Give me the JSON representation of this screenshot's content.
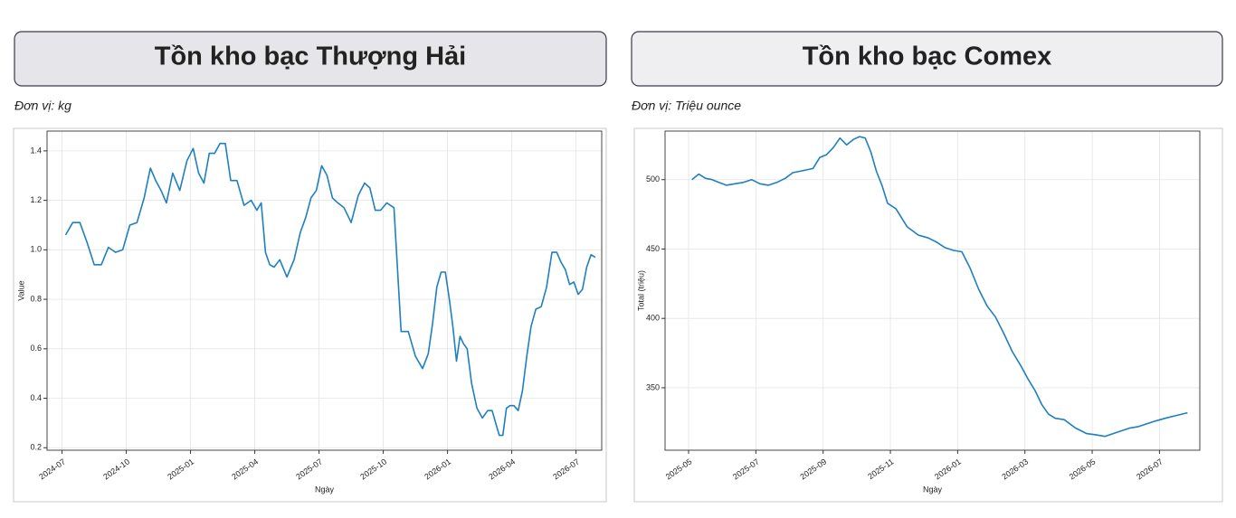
{
  "chart_data": [
    {
      "type": "line",
      "title": "Tồn kho bạc Thượng Hải",
      "subtitle": "Đơn vị: kg",
      "x_label": "Ngày",
      "y_label": "Value",
      "color": "#1f7fbf",
      "grid": true,
      "x": [
        "2024-07",
        "2024-07",
        "2024-07",
        "2024-08",
        "2024-08",
        "2024-08",
        "2024-09",
        "2024-09",
        "2024-09",
        "2024-10",
        "2024-10",
        "2024-10",
        "2024-11",
        "2024-11",
        "2024-11",
        "2024-11",
        "2024-12",
        "2024-12",
        "2024-12",
        "2025-01",
        "2025-01",
        "2025-01",
        "2025-01",
        "2025-02",
        "2025-02",
        "2025-02",
        "2025-02",
        "2025-03",
        "2025-03",
        "2025-03",
        "2025-04",
        "2025-04",
        "2025-04",
        "2025-04",
        "2025-04",
        "2025-05",
        "2025-05",
        "2025-05",
        "2025-06",
        "2025-06",
        "2025-06",
        "2025-06",
        "2025-07",
        "2025-07",
        "2025-07",
        "2025-07",
        "2025-08",
        "2025-08",
        "2025-08",
        "2025-09",
        "2025-09",
        "2025-09",
        "2025-09",
        "2025-10",
        "2025-10",
        "2025-10",
        "2025-11",
        "2025-11",
        "2025-11",
        "2025-12",
        "2025-12",
        "2025-12",
        "2025-12",
        "2025-12",
        "2026-01",
        "2026-01",
        "2026-01",
        "2026-01",
        "2026-01",
        "2026-01",
        "2026-02",
        "2026-02",
        "2026-02",
        "2026-02",
        "2026-03",
        "2026-03",
        "2026-03",
        "2026-03",
        "2026-03",
        "2026-03",
        "2026-04",
        "2026-04",
        "2026-04",
        "2026-04",
        "2026-04",
        "2026-05",
        "2026-05",
        "2026-05",
        "2026-05",
        "2026-06",
        "2026-06",
        "2026-06",
        "2026-06",
        "2026-06",
        "2026-07",
        "2026-07",
        "2026-07",
        "2026-07",
        "2026-07"
      ],
      "values": [
        1.06,
        1.11,
        1.11,
        1.03,
        0.94,
        0.94,
        1.01,
        0.99,
        1.0,
        1.1,
        1.11,
        1.21,
        1.33,
        1.28,
        1.24,
        1.19,
        1.31,
        1.24,
        1.36,
        1.41,
        1.31,
        1.27,
        1.39,
        1.39,
        1.43,
        1.43,
        1.28,
        1.28,
        1.18,
        1.2,
        1.16,
        1.19,
        0.99,
        0.94,
        0.93,
        0.96,
        0.89,
        0.96,
        1.07,
        1.13,
        1.21,
        1.24,
        1.34,
        1.3,
        1.21,
        1.19,
        1.17,
        1.11,
        1.22,
        1.27,
        1.25,
        1.16,
        1.16,
        1.19,
        1.17,
        0.67,
        0.67,
        0.57,
        0.52,
        0.58,
        0.7,
        0.85,
        0.91,
        0.91,
        0.8,
        0.69,
        0.55,
        0.65,
        0.62,
        0.6,
        0.46,
        0.36,
        0.32,
        0.35,
        0.35,
        0.3,
        0.25,
        0.25,
        0.36,
        0.37,
        0.37,
        0.35,
        0.43,
        0.57,
        0.69,
        0.76,
        0.77,
        0.85,
        0.99,
        0.99,
        0.95,
        0.92,
        0.86,
        0.87,
        0.82,
        0.84,
        0.93,
        0.98,
        0.97
      ],
      "xticks": [
        "2024-07",
        "2024-10",
        "2025-01",
        "2025-04",
        "2025-07",
        "2025-10",
        "2026-01",
        "2026-04",
        "2026-07"
      ],
      "ylim": [
        0.19,
        1.48
      ],
      "yticks": [
        0.2,
        0.4,
        0.6,
        0.8,
        {
          "value": 1,
          "label": "1.0"
        },
        1.2,
        1.4
      ]
    },
    {
      "type": "line",
      "title": "Tồn kho bạc Comex",
      "subtitle": "Đơn vị: Triệu ounce",
      "x_label": "Ngày",
      "y_label": "Total (triệu)",
      "color": "#1f7fbf",
      "grid": true,
      "x": [
        "2025-05",
        "2025-05",
        "2025-05",
        "2025-05",
        "2025-05",
        "2025-06",
        "2025-06",
        "2025-06",
        "2025-06",
        "2025-07",
        "2025-07",
        "2025-07",
        "2025-07",
        "2025-08",
        "2025-08",
        "2025-08",
        "2025-08",
        "2025-08",
        "2025-09",
        "2025-09",
        "2025-09",
        "2025-09",
        "2025-09",
        "2025-10",
        "2025-10",
        "2025-10",
        "2025-10",
        "2025-10",
        "2025-10",
        "2025-11",
        "2025-11",
        "2025-11",
        "2025-12",
        "2025-12",
        "2025-12",
        "2025-12",
        "2026-01",
        "2026-01",
        "2026-01",
        "2026-01",
        "2026-02",
        "2026-02",
        "2026-02",
        "2026-02",
        "2026-03",
        "2026-03",
        "2026-03",
        "2026-03",
        "2026-03",
        "2026-04",
        "2026-04",
        "2026-04",
        "2026-05",
        "2026-05",
        "2026-05",
        "2026-05",
        "2026-06",
        "2026-06",
        "2026-06",
        "2026-06",
        "2026-07",
        "2026-07",
        "2026-07"
      ],
      "values": [
        500,
        504,
        501,
        500,
        498,
        496,
        497,
        498,
        500,
        497,
        496,
        498,
        501,
        505,
        506,
        507,
        508,
        516,
        518,
        523,
        530,
        525,
        529,
        531,
        530,
        520,
        506,
        496,
        483,
        479,
        466,
        460,
        458,
        455,
        451,
        449,
        448,
        436,
        421,
        409,
        401,
        389,
        376,
        366,
        356,
        348,
        338,
        331,
        328,
        327,
        321,
        317,
        316,
        315,
        317,
        319,
        321,
        322,
        324,
        326,
        328,
        330,
        332
      ],
      "xticks": [
        "2025-05",
        "2025-07",
        "2025-09",
        "2025-11",
        "2026-01",
        "2026-03",
        "2026-05",
        "2026-07"
      ],
      "ylim": [
        305,
        535
      ],
      "yticks": [
        350,
        400,
        450,
        500
      ]
    }
  ]
}
